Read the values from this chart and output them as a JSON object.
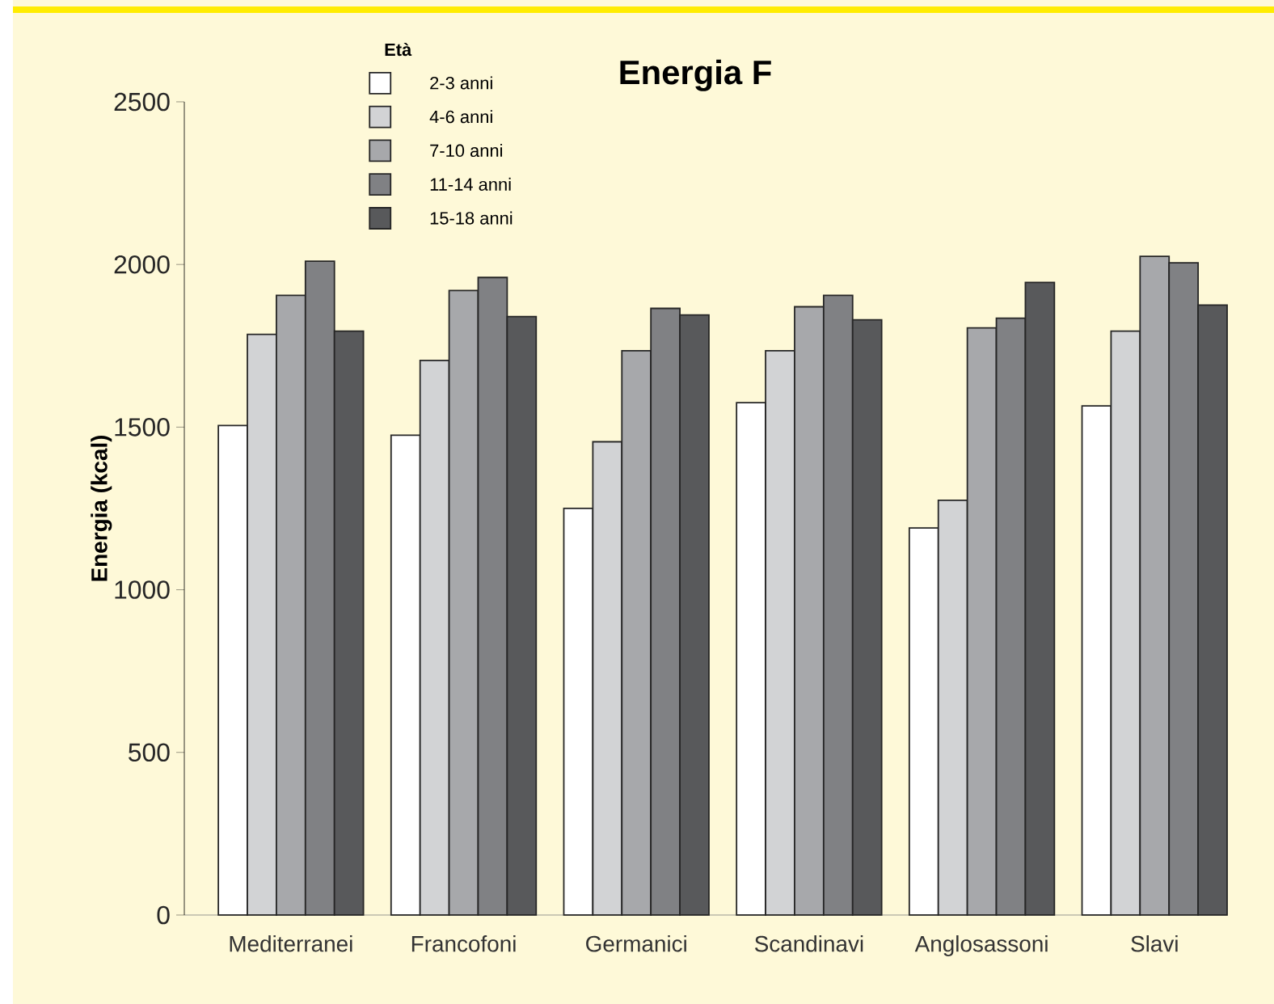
{
  "chart_data": {
    "type": "bar",
    "title": "Energia F",
    "ylabel": "Energia (kcal)",
    "legend_title": "Età",
    "legend": "top left",
    "grid": false,
    "categories": [
      "Mediterranei",
      "Francofoni",
      "Germanici",
      "Scandinavi",
      "Anglosassoni",
      "Slavi"
    ],
    "ylim": [
      0,
      2500
    ],
    "yticks": [
      0,
      500,
      1000,
      1500,
      2000,
      2500
    ],
    "series": [
      {
        "name": "2-3 anni",
        "color": "#ffffff",
        "values": [
          1505,
          1475,
          1250,
          1575,
          1190,
          1565
        ]
      },
      {
        "name": "4-6 anni",
        "color": "#d2d3d5",
        "values": [
          1785,
          1705,
          1455,
          1735,
          1275,
          1795
        ]
      },
      {
        "name": "7-10 anni",
        "color": "#a7a8ab",
        "values": [
          1905,
          1920,
          1735,
          1870,
          1805,
          2025
        ]
      },
      {
        "name": "11-14 anni",
        "color": "#808184",
        "values": [
          2010,
          1960,
          1865,
          1905,
          1835,
          2005
        ]
      },
      {
        "name": "15-18 anni",
        "color": "#58595b",
        "values": [
          1795,
          1840,
          1845,
          1830,
          1945,
          1875
        ]
      }
    ]
  }
}
